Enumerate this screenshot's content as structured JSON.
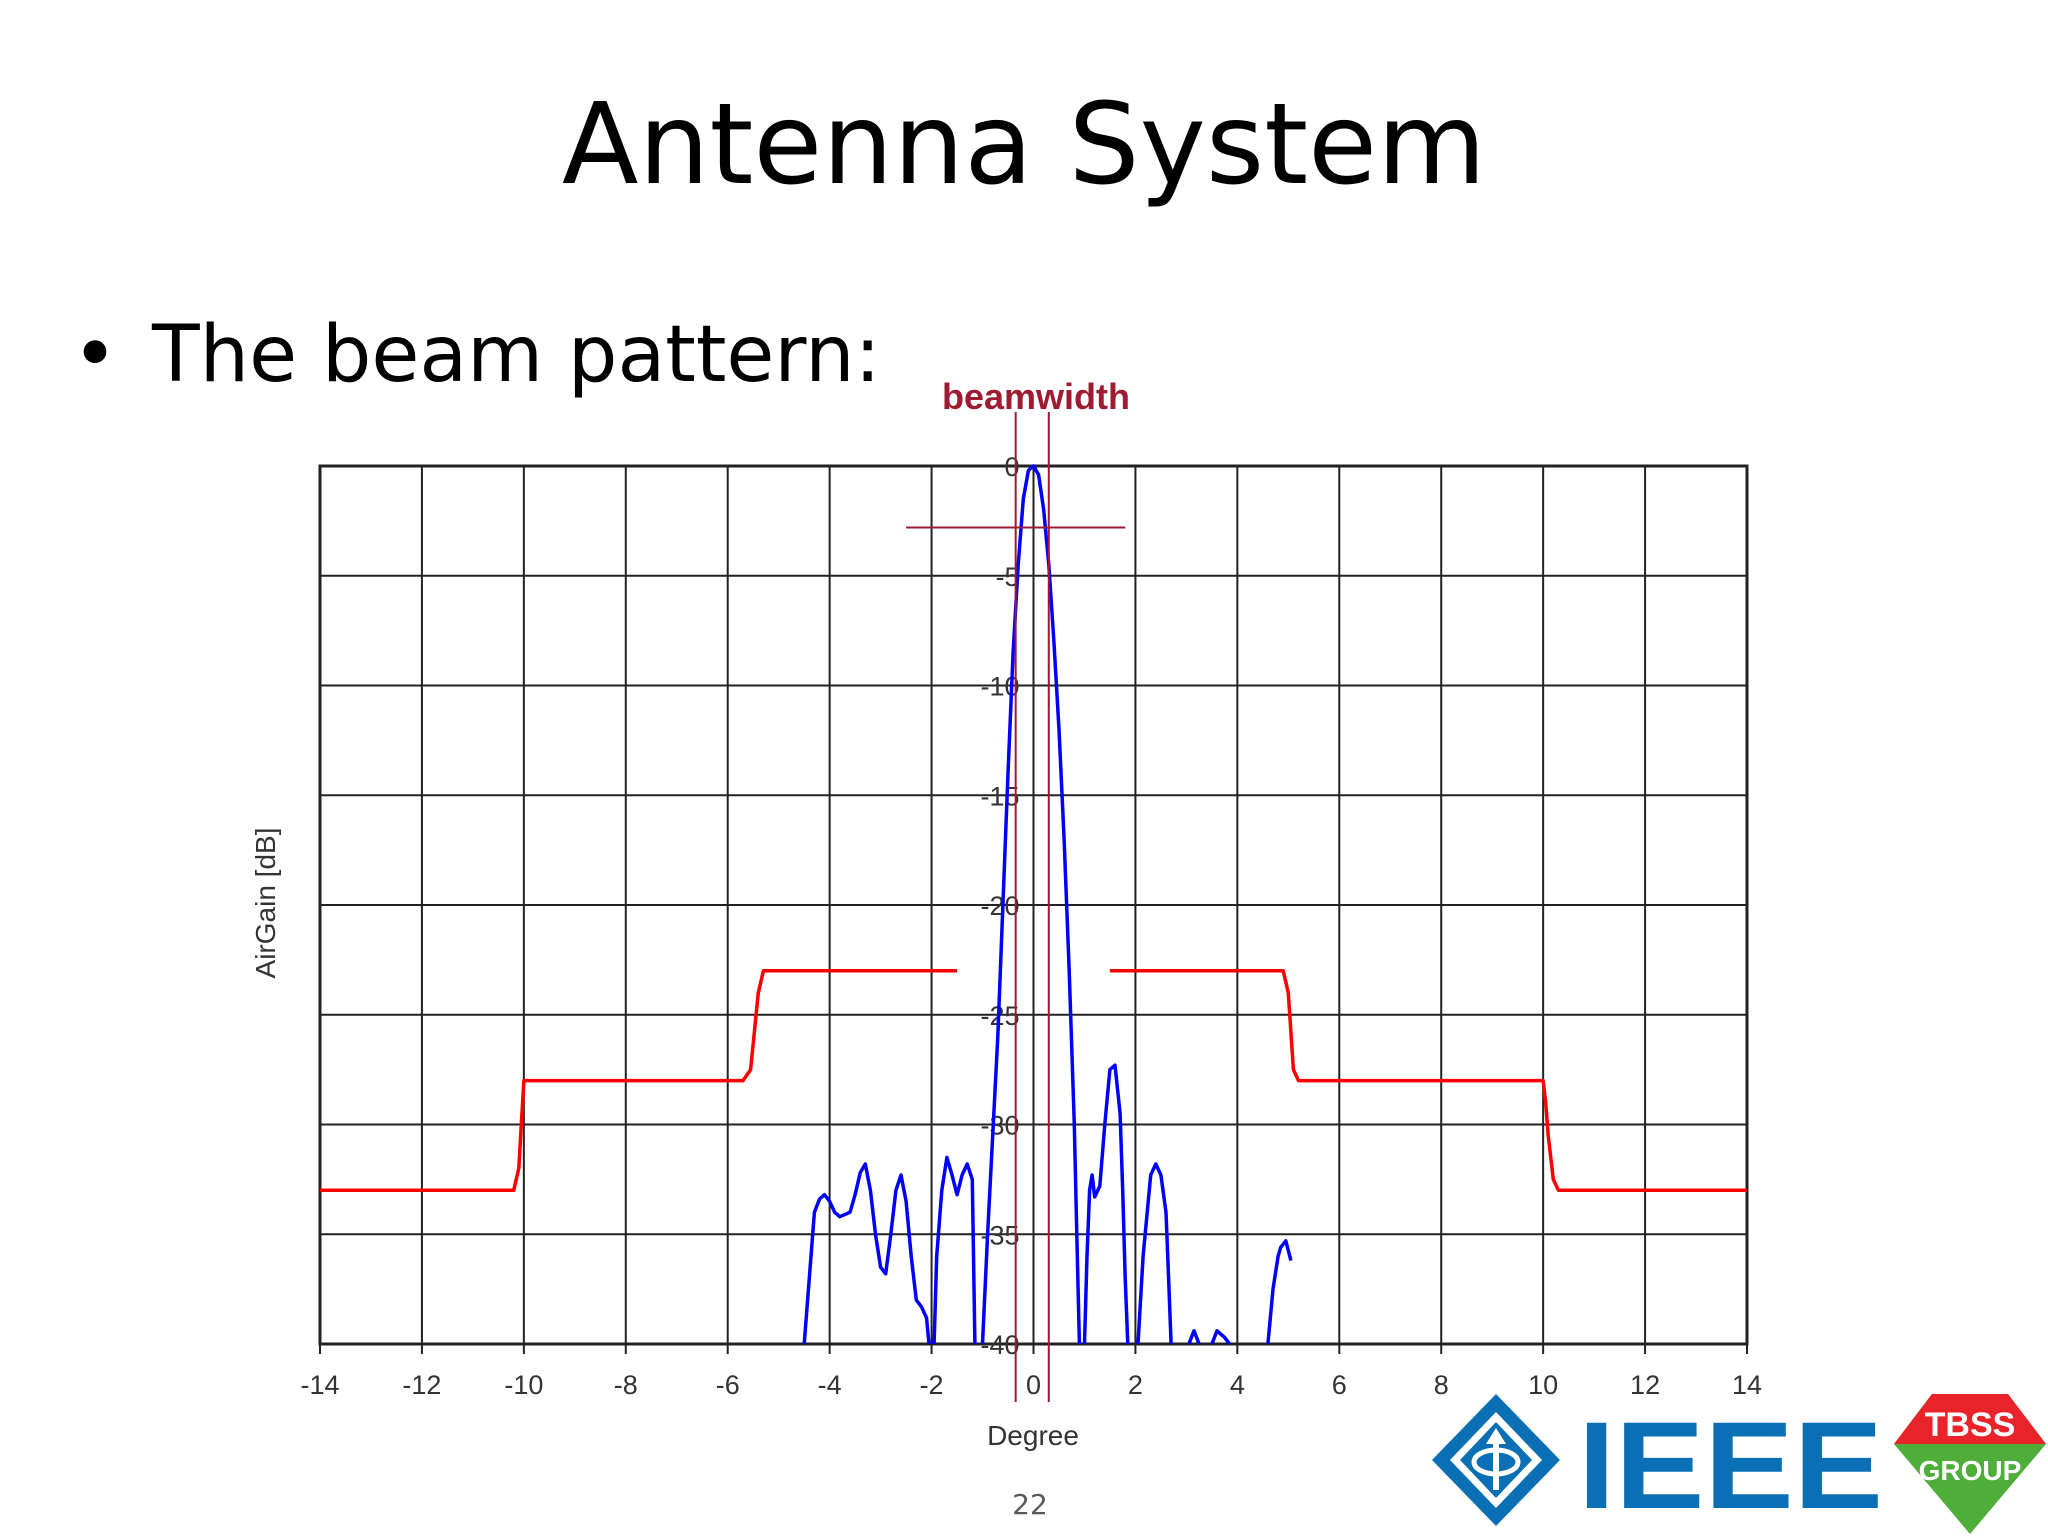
{
  "slide": {
    "title": "Antenna System",
    "bullet": "The beam pattern:",
    "page_number": "22"
  },
  "logos": {
    "ieee": "IEEE",
    "tbss_line1": "TBSS",
    "tbss_line2": "GROUP",
    "ieee_color": "#0a6fb4",
    "tbss_color": "#e8232a",
    "tbss_green": "#4fae3a"
  },
  "chart_data": {
    "type": "line",
    "xlabel": "Degree",
    "ylabel": "AirGain [dB]",
    "xlim": [
      -14,
      14
    ],
    "ylim": [
      -40,
      0
    ],
    "x_ticks": [
      "-14",
      "-12",
      "-10",
      "-8",
      "-6",
      "-4",
      "-2",
      "0",
      "2",
      "4",
      "6",
      "8",
      "10",
      "12",
      "14"
    ],
    "y_ticks": [
      "0",
      "-5",
      "-10",
      "-15",
      "-20",
      "-25",
      "-30",
      "-35",
      "-40"
    ],
    "grid": true,
    "annotation": {
      "label": "beamwidth",
      "marker_x": [
        -0.35,
        0.3
      ],
      "marker_level_db": -2.8,
      "color": "#9e1b32"
    },
    "series": [
      {
        "color": "#0000ff",
        "segments": [
          [
            [
              -4.5,
              -40
            ],
            [
              -4.4,
              -37
            ],
            [
              -4.3,
              -34
            ],
            [
              -4.2,
              -33.4
            ],
            [
              -4.1,
              -33.2
            ],
            [
              -4.0,
              -33.5
            ],
            [
              -3.9,
              -34
            ],
            [
              -3.8,
              -34.2
            ],
            [
              -3.6,
              -34
            ],
            [
              -3.5,
              -33.2
            ],
            [
              -3.4,
              -32.2
            ],
            [
              -3.3,
              -31.8
            ],
            [
              -3.2,
              -33
            ],
            [
              -3.1,
              -35
            ],
            [
              -3.0,
              -36.5
            ],
            [
              -2.9,
              -36.8
            ],
            [
              -2.8,
              -35
            ],
            [
              -2.7,
              -33
            ],
            [
              -2.6,
              -32.3
            ],
            [
              -2.5,
              -33.5
            ],
            [
              -2.4,
              -36
            ],
            [
              -2.3,
              -38
            ],
            [
              -2.2,
              -38.3
            ],
            [
              -2.1,
              -38.8
            ],
            [
              -2.05,
              -40
            ]
          ],
          [
            [
              -1.95,
              -40
            ],
            [
              -1.9,
              -36
            ],
            [
              -1.8,
              -33
            ],
            [
              -1.7,
              -31.5
            ],
            [
              -1.6,
              -32.3
            ],
            [
              -1.5,
              -33.2
            ],
            [
              -1.4,
              -32.3
            ],
            [
              -1.3,
              -31.8
            ],
            [
              -1.2,
              -32.5
            ],
            [
              -1.15,
              -40
            ]
          ],
          [
            [
              -1.0,
              -40
            ],
            [
              -0.9,
              -35
            ],
            [
              -0.8,
              -30.5
            ],
            [
              -0.7,
              -26
            ],
            [
              -0.6,
              -20
            ],
            [
              -0.5,
              -14
            ],
            [
              -0.4,
              -8.5
            ],
            [
              -0.3,
              -4.5
            ],
            [
              -0.2,
              -1.5
            ],
            [
              -0.1,
              -0.2
            ],
            [
              0.0,
              0
            ],
            [
              0.1,
              -0.4
            ],
            [
              0.2,
              -2
            ],
            [
              0.3,
              -4.5
            ],
            [
              0.4,
              -8
            ],
            [
              0.5,
              -12
            ],
            [
              0.6,
              -17
            ],
            [
              0.7,
              -23
            ],
            [
              0.8,
              -30
            ],
            [
              0.85,
              -35
            ],
            [
              0.9,
              -40
            ]
          ],
          [
            [
              1.0,
              -40
            ],
            [
              1.05,
              -36
            ],
            [
              1.1,
              -33
            ],
            [
              1.15,
              -32.3
            ],
            [
              1.2,
              -33.3
            ],
            [
              1.3,
              -32.8
            ],
            [
              1.4,
              -30
            ],
            [
              1.5,
              -27.5
            ],
            [
              1.6,
              -27.3
            ],
            [
              1.7,
              -29.5
            ],
            [
              1.75,
              -33
            ],
            [
              1.8,
              -37
            ],
            [
              1.85,
              -40
            ]
          ],
          [
            [
              2.05,
              -40
            ],
            [
              2.15,
              -36
            ],
            [
              2.3,
              -32.3
            ],
            [
              2.4,
              -31.8
            ],
            [
              2.5,
              -32.3
            ],
            [
              2.6,
              -34
            ],
            [
              2.65,
              -37
            ],
            [
              2.7,
              -40
            ]
          ],
          [
            [
              3.05,
              -40
            ],
            [
              3.15,
              -39.4
            ],
            [
              3.25,
              -40
            ]
          ],
          [
            [
              3.5,
              -40
            ],
            [
              3.6,
              -39.4
            ],
            [
              3.75,
              -39.7
            ],
            [
              3.85,
              -40
            ]
          ],
          [
            [
              4.6,
              -40
            ],
            [
              4.7,
              -37.5
            ],
            [
              4.8,
              -36
            ],
            [
              4.85,
              -35.6
            ],
            [
              4.95,
              -35.3
            ],
            [
              5.05,
              -36.2
            ]
          ]
        ]
      },
      {
        "color": "#ff0000",
        "segments": [
          [
            [
              -14,
              -33
            ],
            [
              -10.2,
              -33
            ],
            [
              -10.1,
              -32
            ],
            [
              -10.05,
              -30
            ],
            [
              -10.0,
              -28
            ],
            [
              -5.7,
              -28
            ],
            [
              -5.55,
              -27.5
            ],
            [
              -5.4,
              -24
            ],
            [
              -5.3,
              -23
            ],
            [
              -1.5,
              -23
            ]
          ],
          [
            [
              1.5,
              -23
            ],
            [
              4.9,
              -23
            ],
            [
              5.0,
              -24
            ],
            [
              5.1,
              -27.5
            ],
            [
              5.2,
              -28
            ],
            [
              10.0,
              -28
            ],
            [
              10.05,
              -29
            ],
            [
              10.1,
              -30.5
            ],
            [
              10.2,
              -32.5
            ],
            [
              10.3,
              -33
            ],
            [
              14,
              -33
            ]
          ]
        ]
      }
    ]
  }
}
